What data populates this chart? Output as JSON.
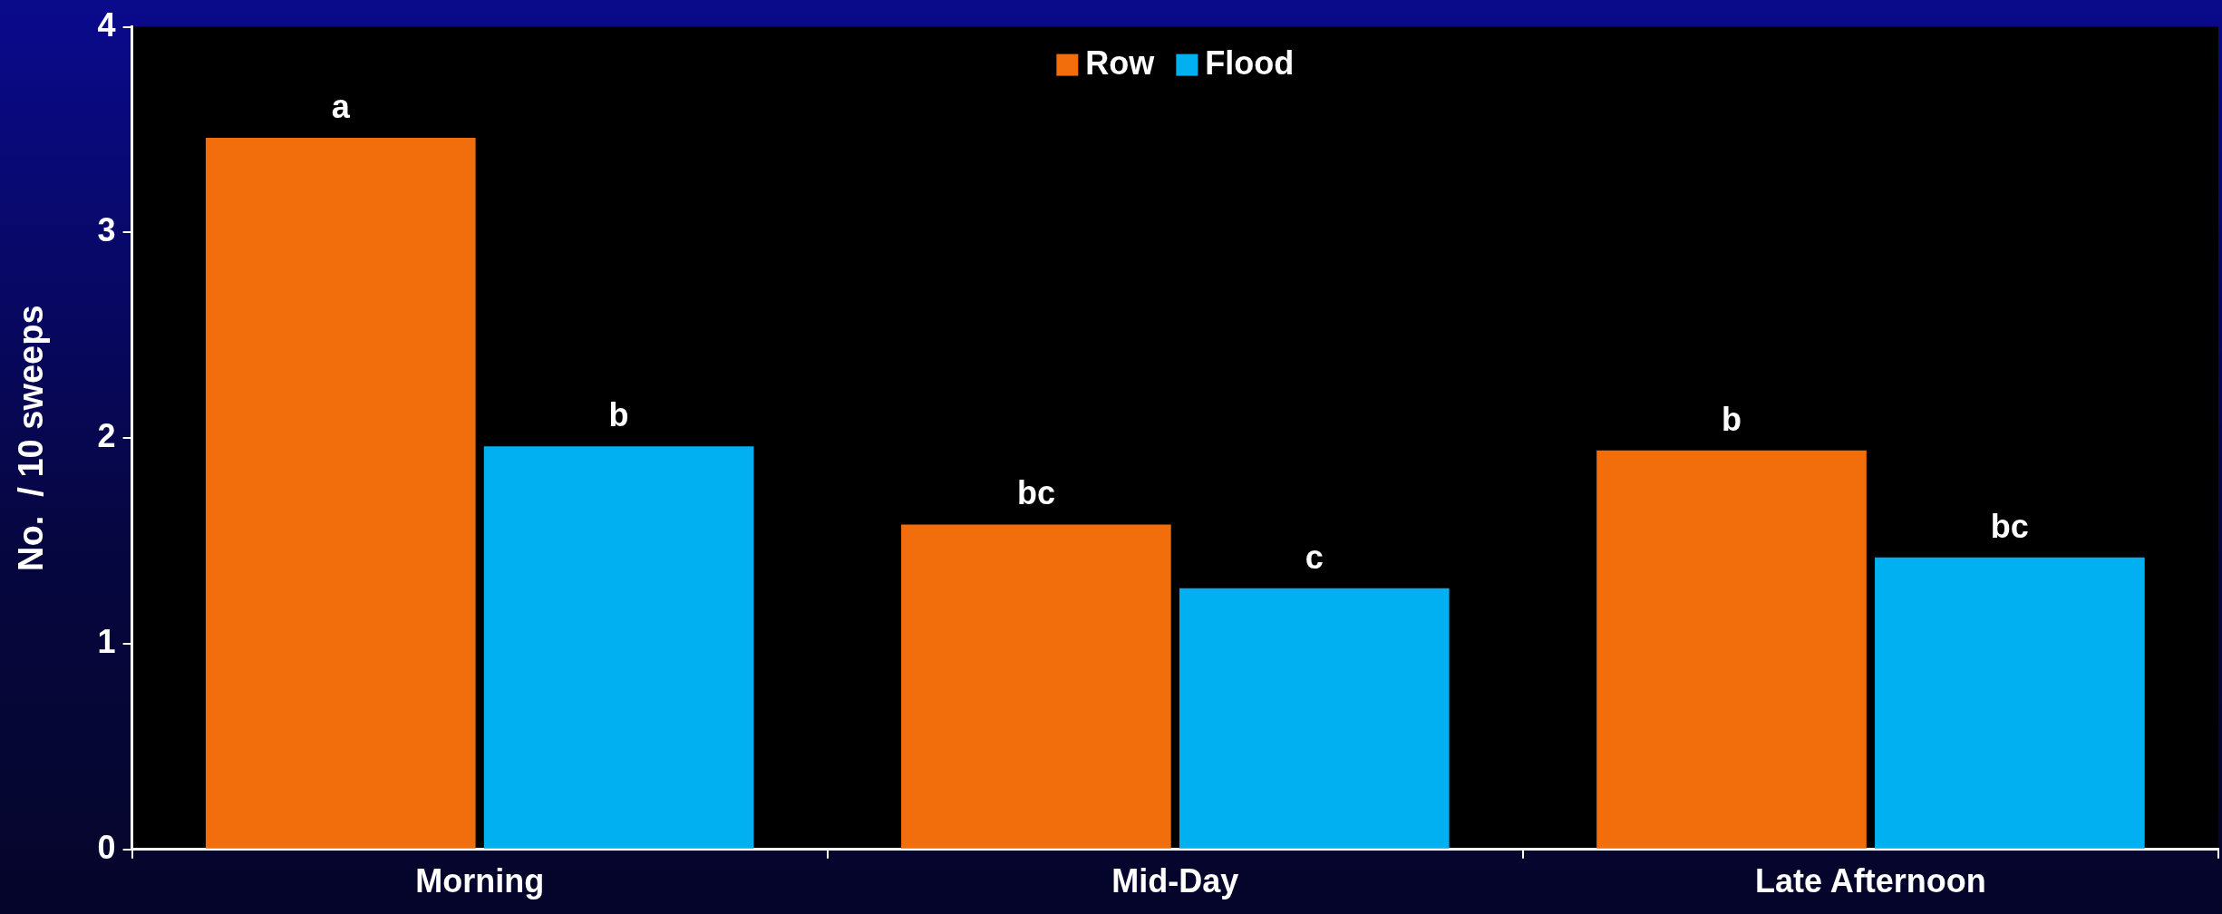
{
  "chart_data": {
    "type": "bar",
    "ylabel": "No.  / 10 sweeps",
    "categories": [
      "Morning",
      "Mid-Day",
      "Late Afternoon"
    ],
    "series": [
      {
        "name": "Row",
        "color": "#f26e0c",
        "values": [
          3.46,
          1.58,
          1.94
        ]
      },
      {
        "name": "Flood",
        "color": "#00b0f0",
        "values": [
          1.96,
          1.27,
          1.42
        ]
      }
    ],
    "ylim": [
      0,
      4
    ],
    "yticks": [
      0,
      1,
      2,
      3,
      4
    ],
    "grid": false,
    "legend": "top",
    "annotations": [
      "a",
      "b",
      "bc",
      "c",
      "b",
      "bc"
    ]
  }
}
